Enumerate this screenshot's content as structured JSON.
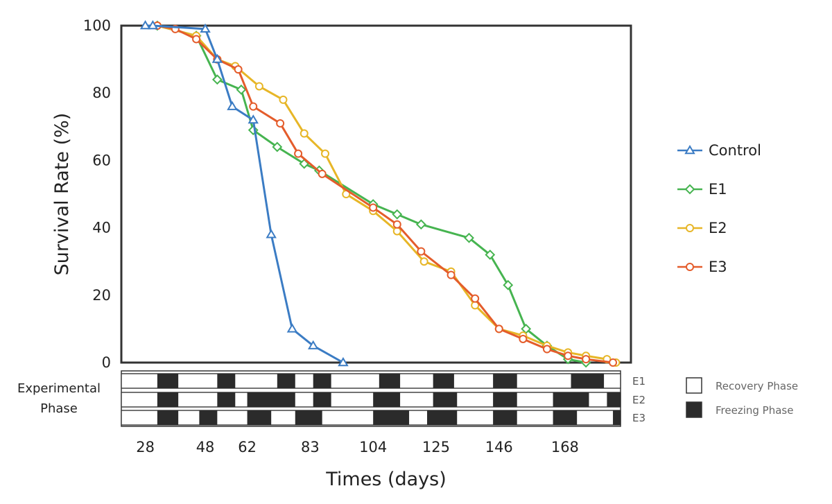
{
  "chart_data": {
    "type": "line",
    "xlabel": "Times (days)",
    "ylabel": "Survival Rate (%)",
    "ylim": [
      0,
      100
    ],
    "yticks": [
      "0",
      "20",
      "40",
      "60",
      "80",
      "100"
    ],
    "xticks": [
      "28",
      "48",
      "62",
      "83",
      "104",
      "125",
      "146",
      "168"
    ],
    "grid": false,
    "legend_position": "right",
    "series": [
      {
        "name": "Control",
        "color": "#3b7cc4",
        "marker": "triangle",
        "points": [
          [
            28,
            100
          ],
          [
            30.5,
            100
          ],
          [
            48,
            99
          ],
          [
            52,
            90
          ],
          [
            57,
            76
          ],
          [
            64,
            72
          ],
          [
            70,
            38
          ],
          [
            77,
            10
          ],
          [
            84,
            5
          ],
          [
            94,
            0
          ]
        ]
      },
      {
        "name": "E1",
        "color": "#46b450",
        "marker": "diamond",
        "points": [
          [
            32,
            100
          ],
          [
            45,
            97
          ],
          [
            52,
            84
          ],
          [
            60,
            81
          ],
          [
            64,
            69
          ],
          [
            72,
            64
          ],
          [
            81,
            59
          ],
          [
            86,
            57
          ],
          [
            104,
            47
          ],
          [
            112,
            44
          ],
          [
            120,
            41
          ],
          [
            136,
            37
          ],
          [
            143,
            32
          ],
          [
            149,
            23
          ],
          [
            155,
            10
          ],
          [
            162,
            5
          ],
          [
            169,
            1
          ],
          [
            175,
            0
          ]
        ]
      },
      {
        "name": "E2",
        "color": "#e7b627",
        "marker": "circle",
        "points": [
          [
            32,
            100
          ],
          [
            45,
            97
          ],
          [
            52,
            90
          ],
          [
            58,
            88
          ],
          [
            66,
            82
          ],
          [
            74,
            78
          ],
          [
            81,
            68
          ],
          [
            88,
            62
          ],
          [
            95,
            50
          ],
          [
            104,
            45
          ],
          [
            112,
            39
          ],
          [
            121,
            30
          ],
          [
            130,
            27
          ],
          [
            138,
            17
          ],
          [
            146,
            10
          ],
          [
            154,
            8
          ],
          [
            162,
            5
          ],
          [
            169,
            3
          ],
          [
            175,
            2
          ],
          [
            182,
            1
          ],
          [
            185,
            0
          ]
        ]
      },
      {
        "name": "E3",
        "color": "#e45c2b",
        "marker": "circle",
        "points": [
          [
            32,
            100
          ],
          [
            38,
            99
          ],
          [
            45,
            96
          ],
          [
            52,
            90
          ],
          [
            59,
            87
          ],
          [
            64,
            76
          ],
          [
            73,
            71
          ],
          [
            79,
            62
          ],
          [
            87,
            56
          ],
          [
            104,
            46
          ],
          [
            112,
            41
          ],
          [
            120,
            33
          ],
          [
            130,
            26
          ],
          [
            138,
            19
          ],
          [
            146,
            10
          ],
          [
            154,
            7
          ],
          [
            162,
            4
          ],
          [
            169,
            2
          ],
          [
            175,
            1
          ],
          [
            184,
            0
          ]
        ]
      }
    ]
  },
  "phase_panel": {
    "title_line1": "Experimental",
    "title_line2": "Phase",
    "rows": [
      {
        "label": "E1",
        "freezing": [
          [
            32,
            39
          ],
          [
            52,
            58
          ],
          [
            72,
            78
          ],
          [
            84,
            90
          ],
          [
            106,
            113
          ],
          [
            124,
            131
          ],
          [
            144,
            152
          ],
          [
            170,
            181
          ]
        ]
      },
      {
        "label": "E2",
        "freezing": [
          [
            32,
            39
          ],
          [
            52,
            58
          ],
          [
            62,
            78
          ],
          [
            84,
            90
          ],
          [
            104,
            113
          ],
          [
            124,
            132
          ],
          [
            144,
            152
          ],
          [
            164,
            176
          ],
          [
            182,
            188
          ]
        ]
      },
      {
        "label": "E3",
        "freezing": [
          [
            32,
            39
          ],
          [
            46,
            52
          ],
          [
            62,
            70
          ],
          [
            78,
            87
          ],
          [
            104,
            116
          ],
          [
            122,
            132
          ],
          [
            144,
            152
          ],
          [
            164,
            172
          ],
          [
            184,
            189
          ]
        ]
      }
    ],
    "legend": [
      {
        "label": "Recovery Phase",
        "fill": "#ffffff"
      },
      {
        "label": "Freezing Phase",
        "fill": "#2b2b2b"
      }
    ]
  }
}
